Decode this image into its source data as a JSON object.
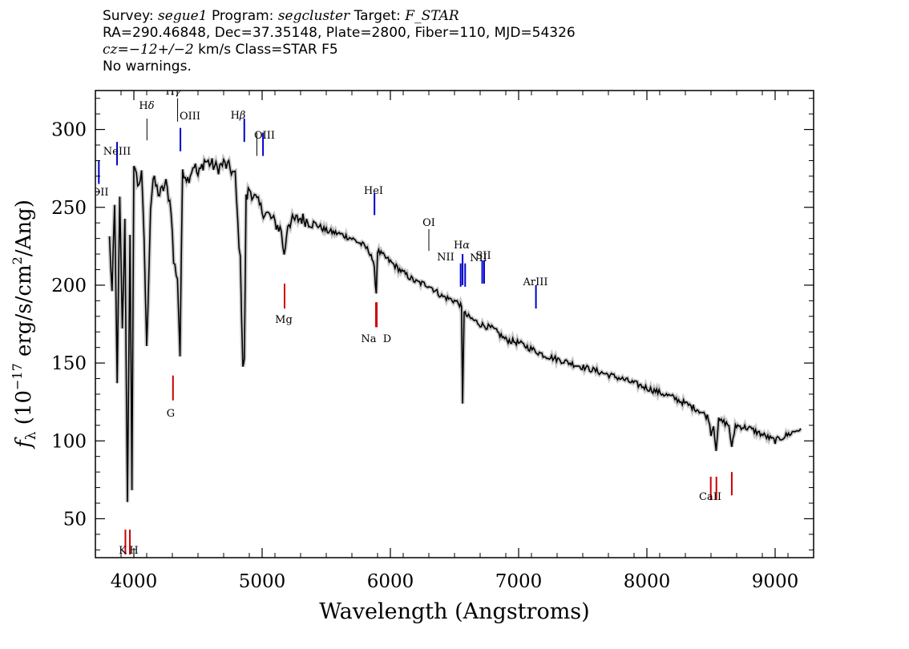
{
  "header": {
    "survey_label": "Survey:",
    "survey_value": "segue1",
    "program_label": "Program:",
    "program_value": "segcluster",
    "target_label": "Target:",
    "target_value": "F_STAR",
    "line2": "RA=290.46848, Dec=37.35148, Plate=2800, Fiber=110, MJD=54326",
    "cz_label": "cz=",
    "cz_value": "−12+/−2",
    "cz_rest": "km/s Class=STAR F5",
    "line4": "No warnings."
  },
  "chart_data": {
    "type": "line",
    "xlabel": "Wavelength (Angstroms)",
    "ylabel": "fλ (10⁻¹⁷ erg/s/cm²/Ang)",
    "xlim": [
      3700,
      9300
    ],
    "ylim": [
      25,
      325
    ],
    "x_ticks": [
      4000,
      5000,
      6000,
      7000,
      8000,
      9000
    ],
    "y_ticks": [
      50,
      100,
      150,
      200,
      250,
      300
    ],
    "series": [
      {
        "x": [
          3810,
          3830,
          3850,
          3870,
          3890,
          3910,
          3930,
          3950,
          3970,
          3985,
          4000,
          4030,
          4060,
          4080,
          4100,
          4130,
          4150,
          4200,
          4250,
          4290,
          4310,
          4340,
          4360,
          4380,
          4420,
          4470,
          4500,
          4550,
          4600,
          4650,
          4700,
          4750,
          4790,
          4810,
          4830,
          4850,
          4861,
          4875,
          4900,
          4950,
          5000,
          5050,
          5100,
          5150,
          5172,
          5200,
          5300,
          5400,
          5500,
          5600,
          5700,
          5800,
          5850,
          5875,
          5890,
          5900,
          6000,
          6100,
          6200,
          6300,
          6400,
          6500,
          6540,
          6555,
          6563,
          6575,
          6600,
          6700,
          6800,
          6900,
          7000,
          7200,
          7400,
          7600,
          7800,
          8000,
          8200,
          8400,
          8480,
          8500,
          8520,
          8540,
          8560,
          8600,
          8640,
          8662,
          8690,
          8800,
          9000,
          9200
        ],
        "y": [
          230,
          195,
          250,
          140,
          255,
          170,
          240,
          60,
          235,
          65,
          280,
          265,
          270,
          230,
          158,
          250,
          268,
          258,
          265,
          250,
          215,
          205,
          155,
          275,
          268,
          278,
          270,
          280,
          278,
          275,
          278,
          275,
          270,
          240,
          215,
          150,
          150,
          255,
          262,
          255,
          248,
          245,
          240,
          235,
          218,
          240,
          243,
          240,
          235,
          233,
          230,
          225,
          220,
          210,
          195,
          222,
          215,
          208,
          202,
          200,
          193,
          190,
          188,
          185,
          125,
          182,
          180,
          175,
          172,
          165,
          163,
          155,
          150,
          145,
          140,
          134,
          128,
          120,
          115,
          105,
          110,
          95,
          113,
          112,
          110,
          95,
          110,
          108,
          100,
          108
        ]
      }
    ],
    "line_markers": [
      {
        "label": "OII",
        "x": 3727,
        "color": "#0000cc"
      },
      {
        "label": "NeIII",
        "x": 3869,
        "color": "#0000cc"
      },
      {
        "label": "Hδ",
        "x": 4102,
        "color": "#000000"
      },
      {
        "label": "Hγ",
        "x": 4341,
        "color": "#000000"
      },
      {
        "label": "OIII",
        "x": 4363,
        "color": "#0000cc"
      },
      {
        "label": "Hβ",
        "x": 4861,
        "color": "#0000cc"
      },
      {
        "label": "OIII",
        "x": 4959,
        "color": "#000000"
      },
      {
        "label": "OIII",
        "x": 5007,
        "color": "#0000cc"
      },
      {
        "label": "HeI",
        "x": 5876,
        "color": "#0000cc"
      },
      {
        "label": "OI",
        "x": 6300,
        "color": "#000000"
      },
      {
        "label": "NII",
        "x": 6548,
        "color": "#0000cc"
      },
      {
        "label": "Hα",
        "x": 6563,
        "color": "#0000cc"
      },
      {
        "label": "NII",
        "x": 6583,
        "color": "#0000cc"
      },
      {
        "label": "SII",
        "x": 6716,
        "color": "#0000cc"
      },
      {
        "label": "SII",
        "x": 6731,
        "color": "#0000cc"
      },
      {
        "label": "ArIII",
        "x": 7135,
        "color": "#0000cc"
      }
    ],
    "absorption_markers": [
      {
        "label": "K",
        "x": 3934,
        "color": "#cc0000"
      },
      {
        "label": "H",
        "x": 3969,
        "color": "#cc0000"
      },
      {
        "label": "G",
        "x": 4305,
        "color": "#cc0000"
      },
      {
        "label": "Mg",
        "x": 5175,
        "color": "#cc0000"
      },
      {
        "label": "Na",
        "x": 5894,
        "color": "#cc0000"
      },
      {
        "label": "D",
        "x": 5894,
        "color": "#cc0000"
      },
      {
        "label": "CaII",
        "x": 8498,
        "color": "#cc0000"
      },
      {
        "label": "CaII",
        "x": 8542,
        "color": "#cc0000"
      },
      {
        "label": "CaII",
        "x": 8662,
        "color": "#cc0000"
      }
    ]
  }
}
